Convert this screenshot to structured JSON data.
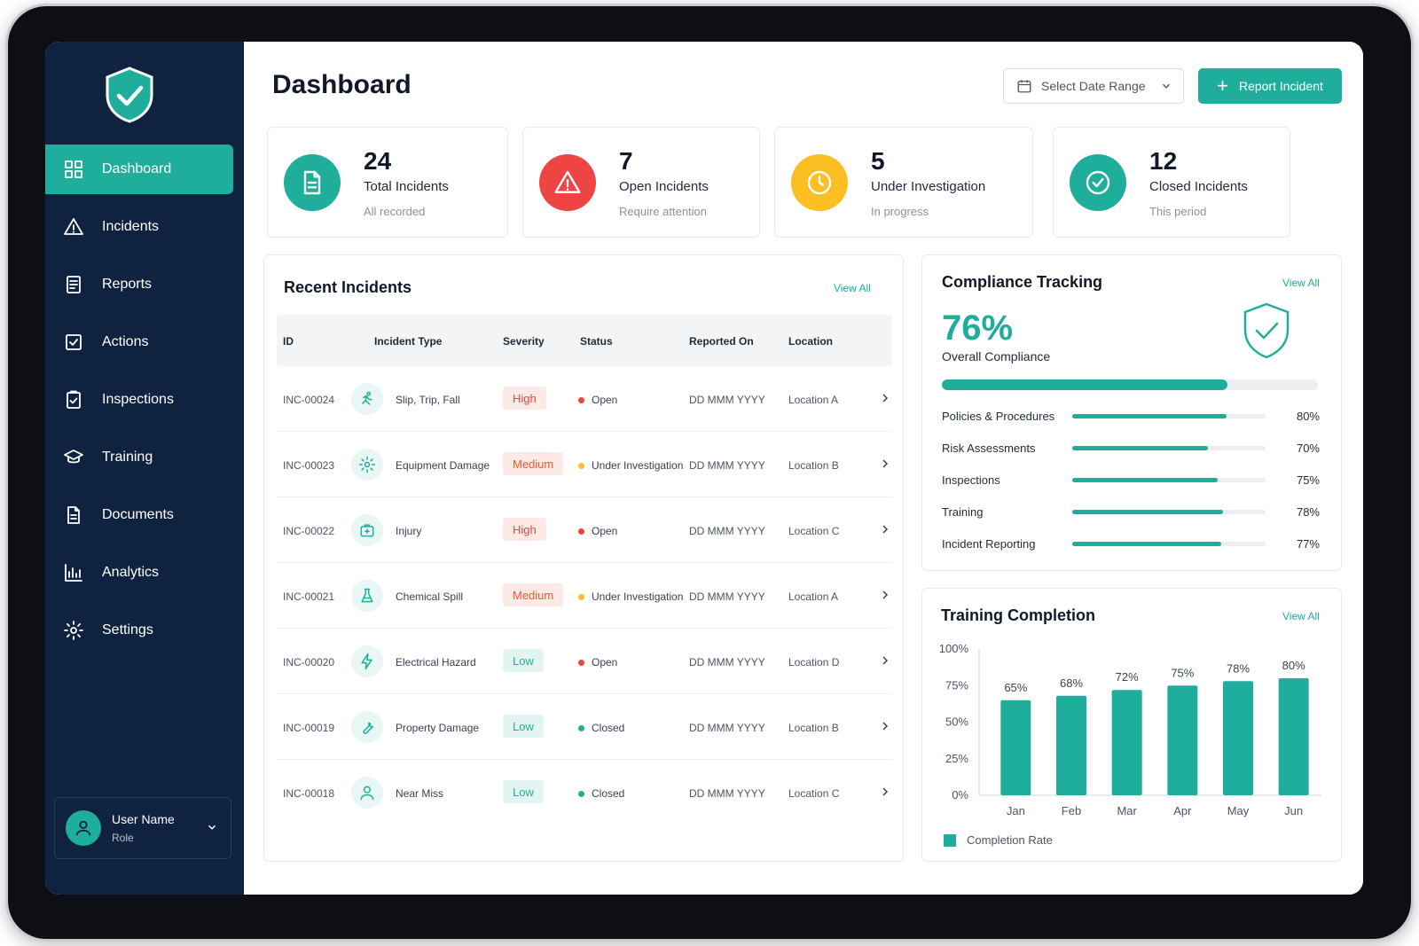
{
  "sidebar": {
    "items": [
      {
        "label": "Dashboard",
        "icon": "grid-icon",
        "active": true
      },
      {
        "label": "Incidents",
        "icon": "warning-icon"
      },
      {
        "label": "Reports",
        "icon": "report-icon"
      },
      {
        "label": "Actions",
        "icon": "checkbox-icon"
      },
      {
        "label": "Inspections",
        "icon": "clipboard-check-icon"
      },
      {
        "label": "Training",
        "icon": "graduation-cap-icon"
      },
      {
        "label": "Documents",
        "icon": "document-icon"
      },
      {
        "label": "Analytics",
        "icon": "bar-chart-icon"
      },
      {
        "label": "Settings",
        "icon": "gear-icon"
      }
    ],
    "user": {
      "name": "User Name",
      "role": "Role"
    }
  },
  "header": {
    "title": "Dashboard",
    "date_range_placeholder": "Select Date Range",
    "report_button": "Report Incident"
  },
  "stats": [
    {
      "value": "24",
      "label": "Total Incidents",
      "sub": "All recorded",
      "color": "#1fae9b",
      "icon": "document-icon"
    },
    {
      "value": "7",
      "label": "Open Incidents",
      "sub": "Require attention",
      "color": "#ef4444",
      "icon": "warning-icon"
    },
    {
      "value": "5",
      "label": "Under Investigation",
      "sub": "In progress",
      "color": "#fbbf24",
      "icon": "clock-icon"
    },
    {
      "value": "12",
      "label": "Closed Incidents",
      "sub": "This period",
      "color": "#1fae9b",
      "icon": "check-circle-icon"
    }
  ],
  "recent": {
    "title": "Recent Incidents",
    "view_all": "View All",
    "columns": [
      "ID",
      "Incident Type",
      "Severity",
      "Status",
      "Reported On",
      "Location"
    ],
    "rows": [
      {
        "id": "INC-00024",
        "type": "Slip, Trip, Fall",
        "icon": "person-fall-icon",
        "severity": "High",
        "status": "Open",
        "date": "DD MMM YYYY",
        "location": "Location A"
      },
      {
        "id": "INC-00023",
        "type": "Equipment Damage",
        "icon": "gear-icon",
        "severity": "Medium",
        "status": "Under Investigation",
        "date": "DD MMM YYYY",
        "location": "Location B"
      },
      {
        "id": "INC-00022",
        "type": "Injury",
        "icon": "first-aid-icon",
        "severity": "High",
        "status": "Open",
        "date": "DD MMM YYYY",
        "location": "Location C"
      },
      {
        "id": "INC-00021",
        "type": "Chemical Spill",
        "icon": "flask-icon",
        "severity": "Medium",
        "status": "Under Investigation",
        "date": "DD MMM YYYY",
        "location": "Location A"
      },
      {
        "id": "INC-00020",
        "type": "Electrical Hazard",
        "icon": "lightning-icon",
        "severity": "Low",
        "status": "Open",
        "date": "DD MMM YYYY",
        "location": "Location D"
      },
      {
        "id": "INC-00019",
        "type": "Property Damage",
        "icon": "wrench-icon",
        "severity": "Low",
        "status": "Closed",
        "date": "DD MMM YYYY",
        "location": "Location B"
      },
      {
        "id": "INC-00018",
        "type": "Near Miss",
        "icon": "person-icon",
        "severity": "Low",
        "status": "Closed",
        "date": "DD MMM YYYY",
        "location": "Location C"
      }
    ],
    "status_colors": {
      "Open": "#ef4444",
      "Under Investigation": "#fbbf24",
      "Closed": "#1fae9b"
    }
  },
  "compliance": {
    "title": "Compliance Tracking",
    "view_all": "View All",
    "overall_value": "76%",
    "overall_label": "Overall Compliance",
    "overall_fraction": 0.76,
    "items": [
      {
        "label": "Policies & Procedures",
        "value": "80%",
        "fraction": 0.8
      },
      {
        "label": "Risk Assessments",
        "value": "70%",
        "fraction": 0.7
      },
      {
        "label": "Inspections",
        "value": "75%",
        "fraction": 0.75
      },
      {
        "label": "Training",
        "value": "78%",
        "fraction": 0.78
      },
      {
        "label": "Incident Reporting",
        "value": "77%",
        "fraction": 0.77
      }
    ]
  },
  "training": {
    "title": "Training Completion",
    "view_all": "View All",
    "legend": "Completion Rate"
  },
  "chart_data": {
    "type": "bar",
    "title": "Training Completion",
    "categories": [
      "Jan",
      "Feb",
      "Mar",
      "Apr",
      "May",
      "Jun"
    ],
    "values": [
      65,
      68,
      72,
      75,
      78,
      80
    ],
    "value_labels": [
      "65%",
      "68%",
      "72%",
      "75%",
      "78%",
      "80%"
    ],
    "y_ticks": [
      "100%",
      "75%",
      "50%",
      "25%",
      "0%"
    ],
    "ylim": [
      0,
      100
    ],
    "series": [
      {
        "name": "Completion Rate",
        "values": [
          65,
          68,
          72,
          75,
          78,
          80
        ]
      }
    ],
    "color": "#1fae9b",
    "legend_position": "bottom-left",
    "grid": false
  }
}
